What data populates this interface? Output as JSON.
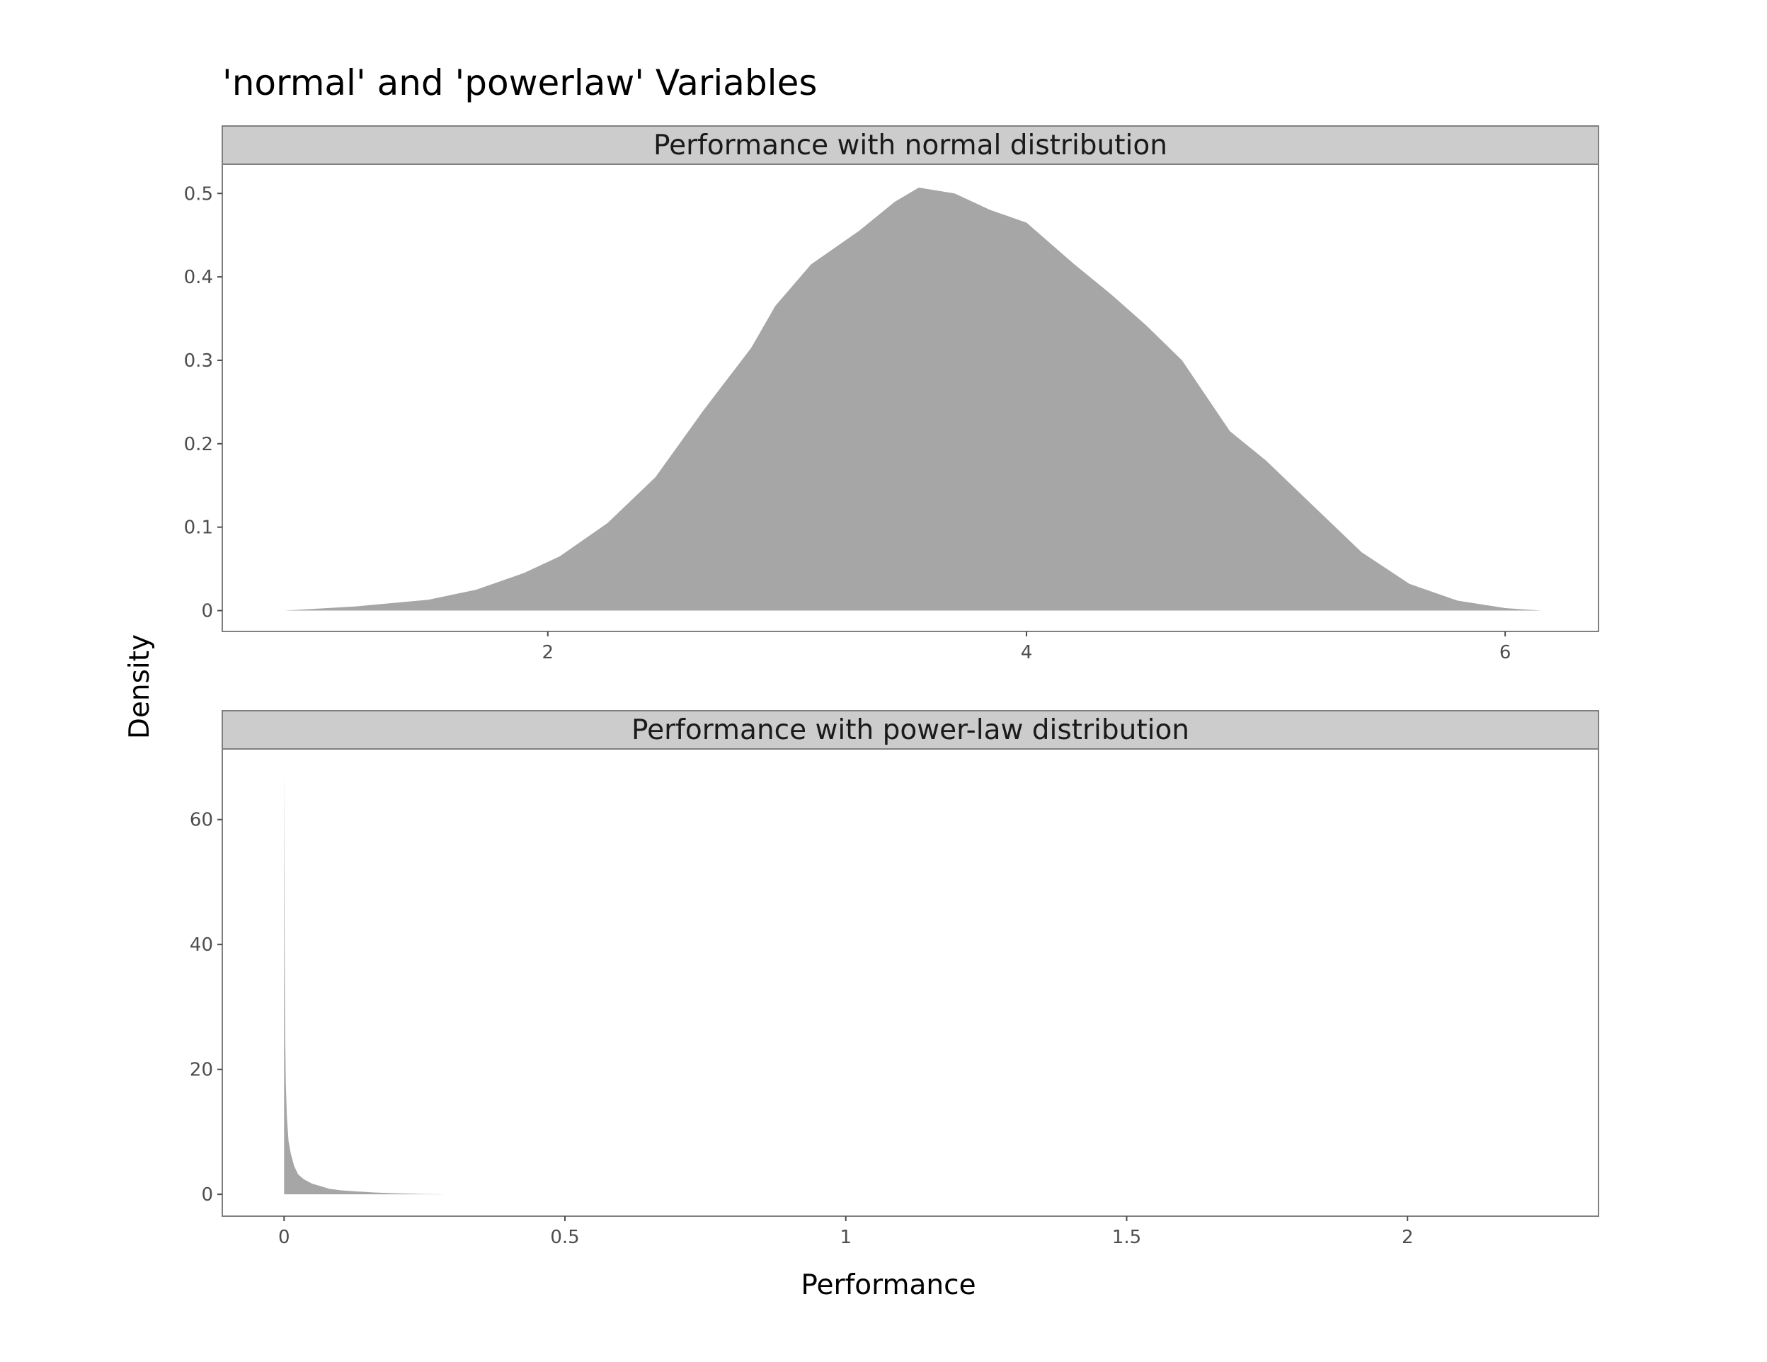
{
  "chart_data": {
    "type": "area",
    "title": "'normal' and 'powerlaw' Variables",
    "xlabel": "Performance",
    "ylabel": "Density",
    "colors": {
      "fill": "#a6a6a6",
      "strip": "#cccccc",
      "border": "#7f7f7f",
      "tick": "#4d4d4d"
    },
    "panels": [
      {
        "strip": "Performance with normal distribution",
        "xlim": [
          0.64,
          6.39
        ],
        "ylim": [
          -0.025,
          0.535
        ],
        "x_ticks": [
          2,
          4,
          6
        ],
        "x_tick_labels": [
          "2",
          "4",
          "6"
        ],
        "y_ticks": [
          0,
          0.1,
          0.2,
          0.3,
          0.4,
          0.5
        ],
        "y_tick_labels": [
          "0",
          "0.1",
          "0.2",
          "0.3",
          "0.4",
          "0.5"
        ],
        "x": [
          0.9,
          1.2,
          1.5,
          1.7,
          1.9,
          2.05,
          2.25,
          2.45,
          2.65,
          2.85,
          2.95,
          3.1,
          3.3,
          3.45,
          3.55,
          3.7,
          3.85,
          4.0,
          4.2,
          4.35,
          4.5,
          4.65,
          4.85,
          5.0,
          5.2,
          5.4,
          5.6,
          5.8,
          6.0,
          6.15
        ],
        "y": [
          0.0,
          0.005,
          0.013,
          0.025,
          0.045,
          0.065,
          0.105,
          0.16,
          0.24,
          0.315,
          0.365,
          0.415,
          0.455,
          0.49,
          0.507,
          0.5,
          0.48,
          0.465,
          0.415,
          0.38,
          0.342,
          0.3,
          0.215,
          0.18,
          0.125,
          0.07,
          0.032,
          0.012,
          0.003,
          0.0
        ]
      },
      {
        "strip": "Performance with power-law distribution",
        "xlim": [
          -0.11,
          2.34
        ],
        "ylim": [
          -3.5,
          71.3
        ],
        "x_ticks": [
          0,
          0.5,
          1,
          1.5,
          2
        ],
        "x_tick_labels": [
          "0",
          "0.5",
          "1",
          "1.5",
          "2"
        ],
        "y_ticks": [
          0,
          20,
          40,
          60
        ],
        "y_tick_labels": [
          "0",
          "20",
          "40",
          "60"
        ],
        "x": [
          0.0,
          0.0005,
          0.001,
          0.002,
          0.003,
          0.005,
          0.008,
          0.012,
          0.018,
          0.025,
          0.035,
          0.05,
          0.065,
          0.08,
          0.1,
          0.13,
          0.16,
          0.2,
          0.25,
          0.29
        ],
        "y": [
          68.0,
          55.0,
          40.0,
          25.0,
          18.0,
          12.5,
          8.5,
          6.5,
          4.5,
          3.2,
          2.4,
          1.7,
          1.3,
          0.9,
          0.65,
          0.45,
          0.3,
          0.15,
          0.05,
          0.0
        ]
      }
    ]
  }
}
